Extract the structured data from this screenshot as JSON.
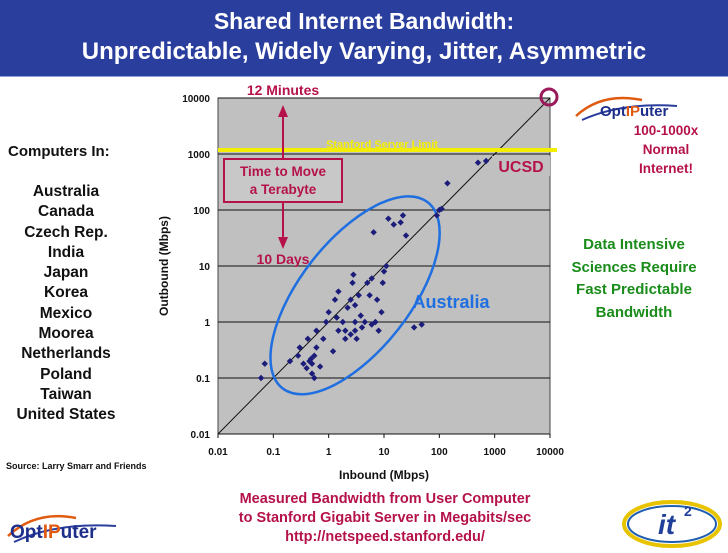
{
  "slide": {
    "title_line1": "Shared Internet Bandwidth:",
    "title_line2": "Unpredictable, Widely Varying, Jitter, Asymmetric",
    "computers_heading": "Computers In:",
    "countries": [
      "Australia",
      "Canada",
      "Czech Rep.",
      "India",
      "Japan",
      "Korea",
      "Mexico",
      "Moorea",
      "Netherlands",
      "Poland",
      "Taiwan",
      "United States"
    ],
    "source": "Source: Larry Smarr and Friends",
    "normal_note": "100-1000x Normal Internet!",
    "science_note": "Data Intensive Sciences Require Fast Predictable Bandwidth",
    "caption_line1": "Measured Bandwidth from User Computer",
    "caption_line2": "to Stanford Gigabit Server in Megabits/sec",
    "caption_line3": "http://netspeed.stanford.edu/",
    "logo_optiputer": "OptIPuter",
    "logo_it2": "it2"
  },
  "colors": {
    "title_bg": "#2a3e9e",
    "plot_bg": "#c0c0c0",
    "points": "#1c1c7a",
    "accent_magenta": "#b5124b",
    "limit_line": "#f4ef00",
    "ellipse": "#1f6fe0",
    "green": "#1a8c1a"
  },
  "chart_data": {
    "type": "scatter",
    "xlabel": "Inbound (Mbps)",
    "ylabel": "Outbound (Mbps)",
    "x_scale": "log",
    "y_scale": "log",
    "xlim": [
      0.01,
      10000
    ],
    "ylim": [
      0.01,
      10000
    ],
    "x_ticks": [
      "0.01",
      "0.1",
      "1",
      "10",
      "100",
      "1000",
      "10000"
    ],
    "y_ticks": [
      "0.01",
      "0.1",
      "1",
      "10",
      "100",
      "1000",
      "10000"
    ],
    "grid": "horizontal",
    "reference_line": "y = x",
    "limit_label": "Stanford Server Limit",
    "limit_value": 1000,
    "annotations": {
      "twelve_minutes": "12 Minutes",
      "ten_days": "10 Days",
      "terabyte": "Time to Move a Terabyte",
      "ucsd": "UCSD",
      "australia": "Australia"
    },
    "points": [
      [
        0.06,
        0.1
      ],
      [
        0.07,
        0.18
      ],
      [
        0.2,
        0.2
      ],
      [
        0.28,
        0.25
      ],
      [
        0.3,
        0.35
      ],
      [
        0.35,
        0.18
      ],
      [
        0.4,
        0.15
      ],
      [
        0.42,
        0.5
      ],
      [
        0.45,
        0.2
      ],
      [
        0.48,
        0.22
      ],
      [
        0.5,
        0.12
      ],
      [
        0.5,
        0.18
      ],
      [
        0.55,
        0.25
      ],
      [
        0.55,
        0.1
      ],
      [
        0.6,
        0.35
      ],
      [
        0.6,
        0.7
      ],
      [
        0.7,
        0.16
      ],
      [
        0.8,
        0.5
      ],
      [
        0.9,
        1.0
      ],
      [
        1.0,
        1.5
      ],
      [
        1.2,
        0.3
      ],
      [
        1.3,
        2.5
      ],
      [
        1.4,
        1.2
      ],
      [
        1.5,
        0.7
      ],
      [
        1.5,
        3.5
      ],
      [
        1.8,
        1.0
      ],
      [
        2.0,
        0.7
      ],
      [
        2.0,
        0.5
      ],
      [
        2.2,
        1.8
      ],
      [
        2.5,
        2.5
      ],
      [
        2.5,
        0.6
      ],
      [
        2.7,
        5.0
      ],
      [
        2.8,
        7.0
      ],
      [
        3.0,
        1.0
      ],
      [
        3.0,
        2.0
      ],
      [
        3.0,
        0.7
      ],
      [
        3.2,
        0.5
      ],
      [
        3.5,
        3.0
      ],
      [
        3.8,
        1.3
      ],
      [
        4.0,
        0.8
      ],
      [
        4.5,
        1.0
      ],
      [
        5.0,
        5.0
      ],
      [
        5.5,
        3.0
      ],
      [
        6.0,
        6.0
      ],
      [
        6.0,
        0.9
      ],
      [
        6.5,
        40
      ],
      [
        7.0,
        1.0
      ],
      [
        7.5,
        2.5
      ],
      [
        8.0,
        0.7
      ],
      [
        9.0,
        1.5
      ],
      [
        9.5,
        5.0
      ],
      [
        10,
        8.0
      ],
      [
        11,
        10
      ],
      [
        12,
        70
      ],
      [
        15,
        55
      ],
      [
        20,
        60
      ],
      [
        22,
        80
      ],
      [
        25,
        35
      ],
      [
        35,
        0.8
      ],
      [
        48,
        0.9
      ],
      [
        90,
        80
      ],
      [
        100,
        100
      ],
      [
        110,
        105
      ],
      [
        140,
        300
      ],
      [
        500,
        700
      ],
      [
        700,
        750
      ]
    ]
  }
}
